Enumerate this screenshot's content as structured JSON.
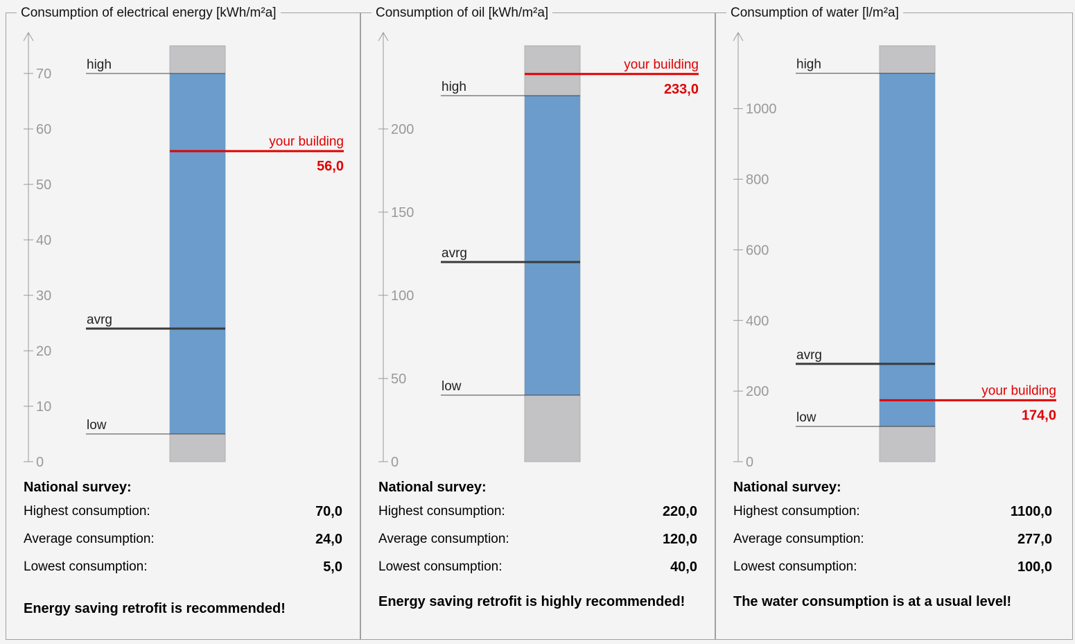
{
  "panels": [
    {
      "title": "Consumption of electrical energy [kWh/m²a]",
      "axis_ticks": [
        0,
        10,
        20,
        30,
        40,
        50,
        60,
        70
      ],
      "axis_max": 75,
      "labels": {
        "high": "high",
        "avrg": "avrg",
        "low": "low",
        "your_building": "your building"
      },
      "high": 70,
      "avrg": 24,
      "low": 5,
      "your_building": 56,
      "your_building_text": "56,0",
      "survey": {
        "heading": "National survey:",
        "highest_label": "Highest consumption:",
        "highest_value": "70,0",
        "average_label": "Average consumption:",
        "average_value": "24,0",
        "lowest_label": "Lowest consumption:",
        "lowest_value": "5,0"
      },
      "verdict": "Energy saving retrofit is recommended!"
    },
    {
      "title": "Consumption of oil [kWh/m²a]",
      "axis_ticks": [
        0,
        50,
        100,
        150,
        200
      ],
      "axis_max": 250,
      "labels": {
        "high": "high",
        "avrg": "avrg",
        "low": "low",
        "your_building": "your building"
      },
      "high": 220,
      "avrg": 120,
      "low": 40,
      "your_building": 233,
      "your_building_text": "233,0",
      "survey": {
        "heading": "National survey:",
        "highest_label": "Highest consumption:",
        "highest_value": "220,0",
        "average_label": "Average consumption:",
        "average_value": "120,0",
        "lowest_label": "Lowest consumption:",
        "lowest_value": "40,0"
      },
      "verdict": "Energy saving retrofit is highly recommended!"
    },
    {
      "title": "Consumption of water [l/m²a]",
      "axis_ticks": [
        0,
        200,
        400,
        600,
        800,
        1000
      ],
      "axis_max": 1178,
      "labels": {
        "high": "high",
        "avrg": "avrg",
        "low": "low",
        "your_building": "your building"
      },
      "high": 1100,
      "avrg": 277,
      "low": 100,
      "your_building": 174,
      "your_building_text": "174,0",
      "survey": {
        "heading": "National survey:",
        "highest_label": "Highest consumption:",
        "highest_value": "1100,0",
        "average_label": "Average consumption:",
        "average_value": "277,0",
        "lowest_label": "Lowest consumption:",
        "lowest_value": "100,0"
      },
      "verdict": "The water consumption is at a usual level!"
    }
  ],
  "colors": {
    "range_fill": "#6b9ccb",
    "out_of_range_fill": "#c3c2c4",
    "your_building": "#e00000",
    "avrg_line": "#3a3a3a",
    "axis": "#999999"
  }
}
